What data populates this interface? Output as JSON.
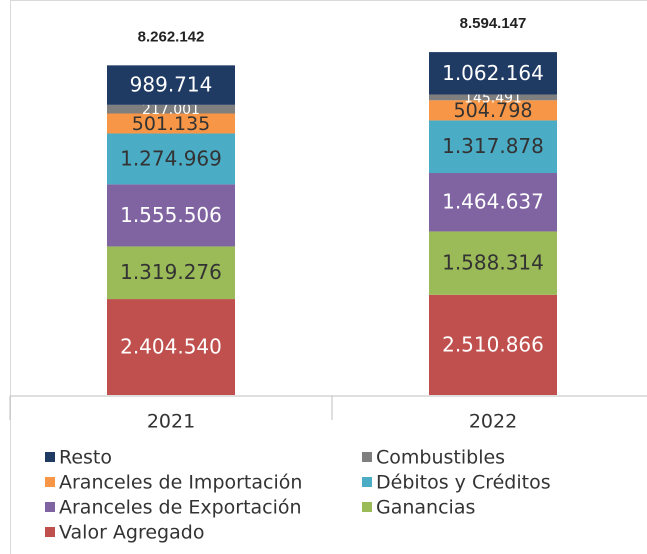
{
  "chart_data": {
    "type": "stacked_bar",
    "categories": [
      "2021",
      "2022"
    ],
    "series": [
      {
        "name": "Valor Agregado",
        "color": "#c0504d",
        "label_color": "#ffffff",
        "values": [
          2404540,
          2510866
        ],
        "value_labels": [
          "2.404.540",
          "2.510.866"
        ]
      },
      {
        "name": "Ganancias",
        "color": "#9bbb59",
        "label_color": "#333333",
        "values": [
          1319276,
          1588314
        ],
        "value_labels": [
          "1.319.276",
          "1.588.314"
        ]
      },
      {
        "name": "Aranceles de Exportación",
        "color": "#8064a2",
        "label_color": "#ffffff",
        "values": [
          1555506,
          1464637
        ],
        "value_labels": [
          "1.555.506",
          "1.464.637"
        ]
      },
      {
        "name": "Débitos y Créditos",
        "color": "#4bacc6",
        "label_color": "#333333",
        "values": [
          1274969,
          1317878
        ],
        "value_labels": [
          "1.274.969",
          "1.317.878"
        ]
      },
      {
        "name": "Aranceles de Importación",
        "color": "#f79646",
        "label_color": "#333333",
        "values": [
          501135,
          504798
        ],
        "value_labels": [
          "501.135",
          "504.798"
        ]
      },
      {
        "name": "Combustibles",
        "color": "#7f7f7f",
        "label_color": "#ffffff",
        "values": [
          217001,
          145491
        ],
        "value_labels": [
          "217.001",
          "145.491"
        ]
      },
      {
        "name": "Resto",
        "color": "#1f3b64",
        "label_color": "#ffffff",
        "values": [
          989714,
          1062164
        ],
        "value_labels": [
          "989.714",
          "1.062.164"
        ]
      }
    ],
    "totals": [
      8262142,
      8594147
    ],
    "total_labels": [
      "8.262.142",
      "8.594.147"
    ],
    "ylim": [
      0,
      9900000
    ],
    "legend": "bottom"
  }
}
